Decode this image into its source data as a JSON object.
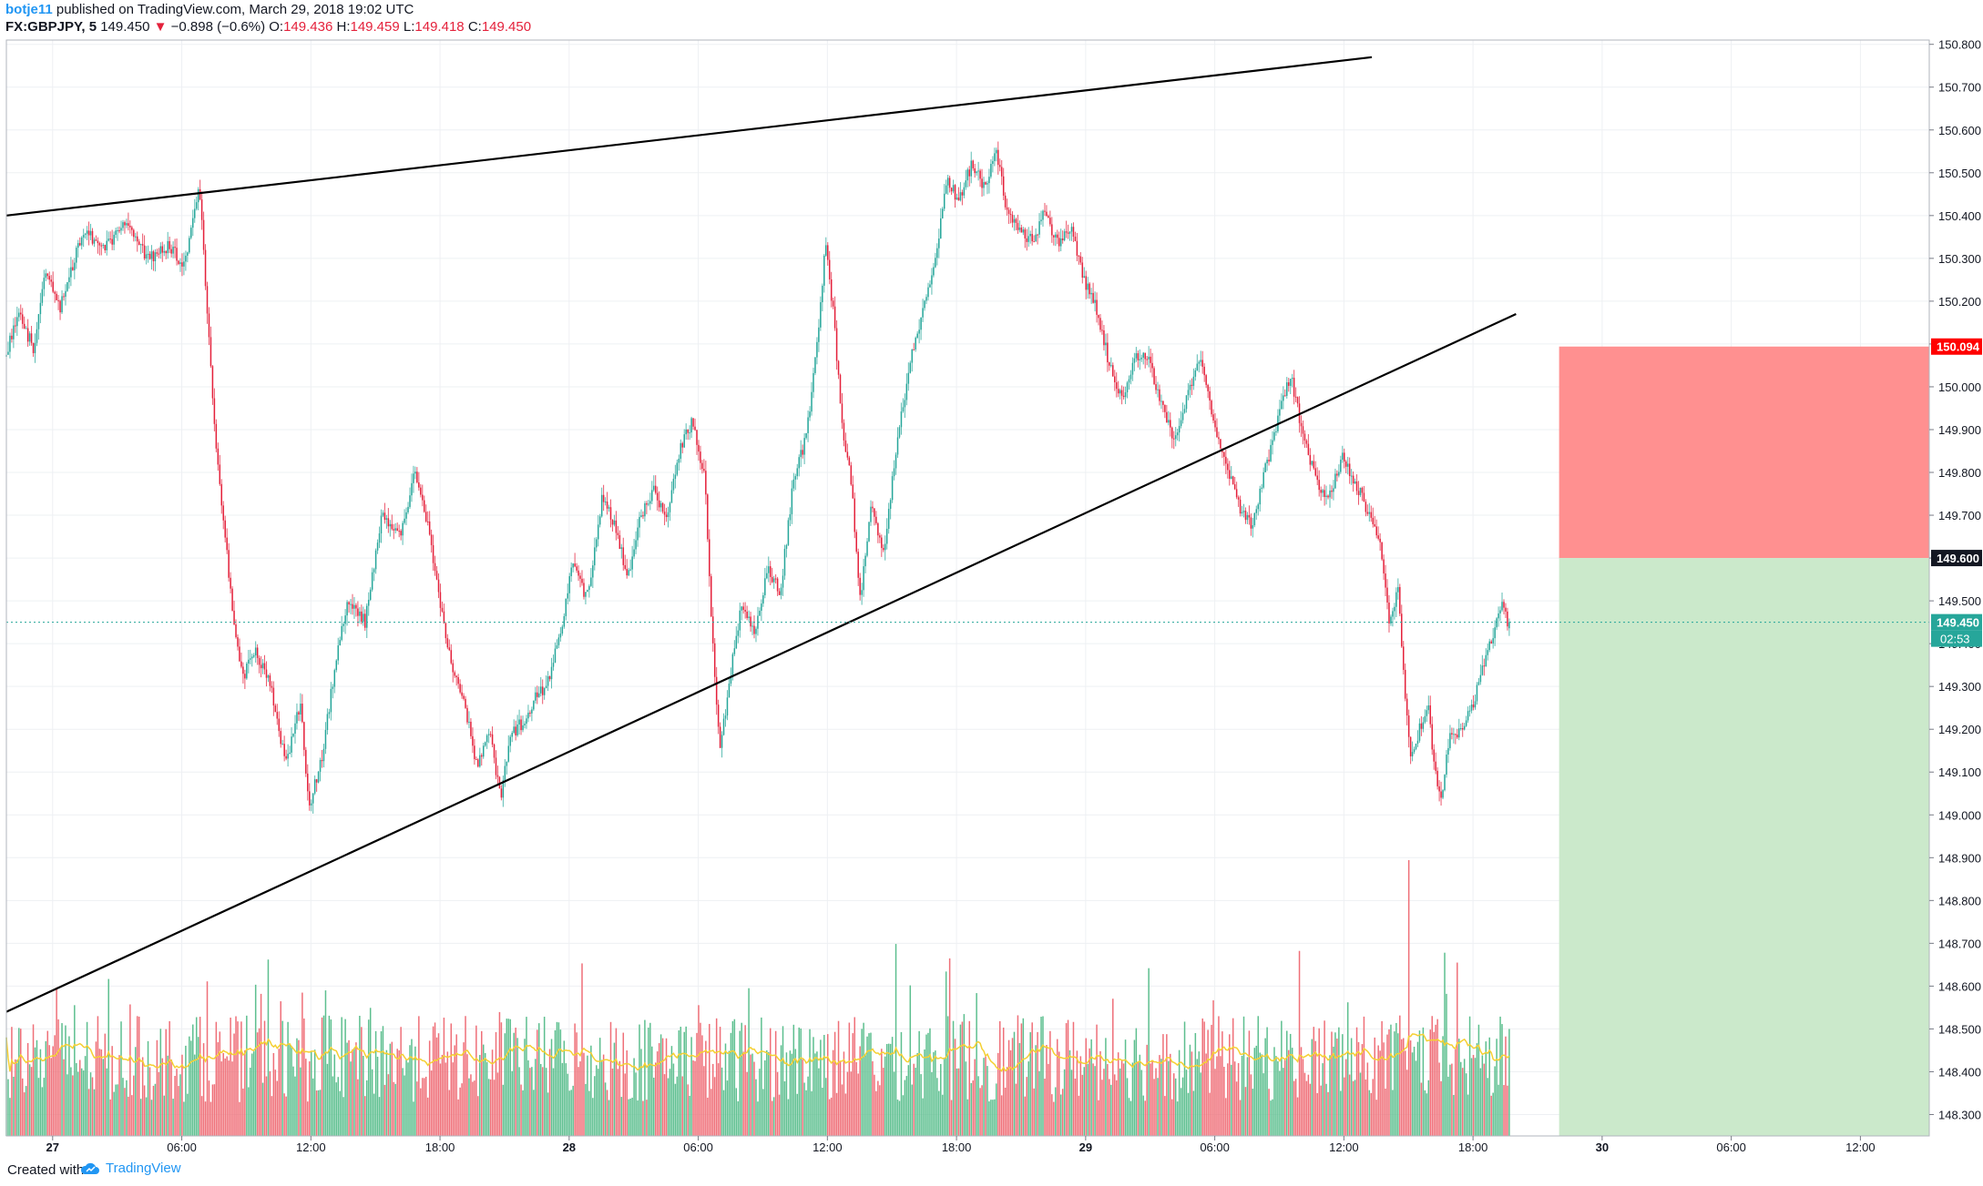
{
  "header": {
    "user": "botje11",
    "published": "published on TradingView.com, March 29, 2018 19:02 UTC",
    "symbol": "FX:GBPJPY, 5",
    "last": "149.450",
    "change": "−0.898 (−0.6%)",
    "o_label": "O:",
    "o_value": "149.436",
    "h_label": "H:",
    "h_value": "149.459",
    "l_label": "L:",
    "l_value": "149.418",
    "c_label": "C:",
    "c_value": "149.450",
    "change_direction": "down"
  },
  "footer": {
    "created_with": "Created with",
    "brand": "TradingView",
    "brand_icon": "tradingview-cloud-icon"
  },
  "colors": {
    "up": "#26a69a",
    "down": "#e4213b",
    "volume_up": "#5dbf8f",
    "volume_down": "#ef6f78",
    "volume_ma": "#f5d033",
    "stop_zone": "#ff8a8a",
    "target_zone": "#c8e8c8",
    "trendline": "#000000",
    "grid": "#eef0f3"
  },
  "chart_data": {
    "type": "candlestick",
    "symbol": "FX:GBPJPY",
    "interval": "5",
    "ylim": [
      148.25,
      150.81
    ],
    "y_ticks": [
      150.8,
      150.7,
      150.6,
      150.5,
      150.4,
      150.3,
      150.2,
      150.1,
      150.0,
      149.9,
      149.8,
      149.7,
      149.6,
      149.5,
      149.4,
      149.3,
      149.2,
      149.1,
      149.0,
      148.9,
      148.8,
      148.7,
      148.6,
      148.5,
      148.4,
      148.3
    ],
    "y_tick_labels": [
      "150.800",
      "150.700",
      "150.600",
      "150.500",
      "150.400",
      "150.300",
      "150.200",
      "150.100",
      "150.000",
      "149.900",
      "149.800",
      "149.700",
      "149.600",
      "149.500",
      "149.400",
      "149.300",
      "149.200",
      "149.100",
      "149.000",
      "148.900",
      "148.800",
      "148.700",
      "148.600",
      "148.500",
      "148.400",
      "148.300"
    ],
    "x_ticks": [
      {
        "label": "27",
        "hour": 0,
        "bold": true
      },
      {
        "label": "06:00",
        "hour": 6
      },
      {
        "label": "12:00",
        "hour": 12
      },
      {
        "label": "18:00",
        "hour": 18
      },
      {
        "label": "28",
        "hour": 24,
        "bold": true
      },
      {
        "label": "06:00",
        "hour": 30
      },
      {
        "label": "12:00",
        "hour": 36
      },
      {
        "label": "18:00",
        "hour": 42
      },
      {
        "label": "29",
        "hour": 48,
        "bold": true
      },
      {
        "label": "06:00",
        "hour": 54
      },
      {
        "label": "12:00",
        "hour": 60
      },
      {
        "label": "18:00",
        "hour": 66
      },
      {
        "label": "30",
        "hour": 72,
        "bold": true
      },
      {
        "label": "06:00",
        "hour": 78
      },
      {
        "label": "12:00",
        "hour": 84
      }
    ],
    "x_range_hours": [
      -2.15,
      87.2
    ],
    "price_path": [
      {
        "h": -2.15,
        "p": 150.07
      },
      {
        "h": -1.5,
        "p": 150.17
      },
      {
        "h": -0.8,
        "p": 150.09
      },
      {
        "h": -0.2,
        "p": 150.28
      },
      {
        "h": 0.4,
        "p": 150.18
      },
      {
        "h": 1.5,
        "p": 150.37
      },
      {
        "h": 2.5,
        "p": 150.32
      },
      {
        "h": 3.5,
        "p": 150.39
      },
      {
        "h": 4.5,
        "p": 150.3
      },
      {
        "h": 5.5,
        "p": 150.33
      },
      {
        "h": 6.2,
        "p": 150.28
      },
      {
        "h": 6.9,
        "p": 150.47
      },
      {
        "h": 7.3,
        "p": 150.15
      },
      {
        "h": 7.7,
        "p": 149.85
      },
      {
        "h": 8.1,
        "p": 149.65
      },
      {
        "h": 8.5,
        "p": 149.45
      },
      {
        "h": 8.9,
        "p": 149.32
      },
      {
        "h": 9.5,
        "p": 149.38
      },
      {
        "h": 10.2,
        "p": 149.3
      },
      {
        "h": 10.9,
        "p": 149.12
      },
      {
        "h": 11.6,
        "p": 149.26
      },
      {
        "h": 12.0,
        "p": 149.02
      },
      {
        "h": 12.6,
        "p": 149.13
      },
      {
        "h": 13.2,
        "p": 149.35
      },
      {
        "h": 13.8,
        "p": 149.5
      },
      {
        "h": 14.6,
        "p": 149.45
      },
      {
        "h": 15.4,
        "p": 149.7
      },
      {
        "h": 16.3,
        "p": 149.66
      },
      {
        "h": 16.9,
        "p": 149.8
      },
      {
        "h": 17.5,
        "p": 149.68
      },
      {
        "h": 18.1,
        "p": 149.49
      },
      {
        "h": 18.7,
        "p": 149.33
      },
      {
        "h": 19.3,
        "p": 149.24
      },
      {
        "h": 19.8,
        "p": 149.11
      },
      {
        "h": 20.4,
        "p": 149.19
      },
      {
        "h": 20.9,
        "p": 149.04
      },
      {
        "h": 21.4,
        "p": 149.19
      },
      {
        "h": 22.0,
        "p": 149.22
      },
      {
        "h": 22.5,
        "p": 149.27
      },
      {
        "h": 23.1,
        "p": 149.31
      },
      {
        "h": 23.7,
        "p": 149.43
      },
      {
        "h": 24.3,
        "p": 149.6
      },
      {
        "h": 24.9,
        "p": 149.5
      },
      {
        "h": 25.6,
        "p": 149.74
      },
      {
        "h": 26.2,
        "p": 149.68
      },
      {
        "h": 26.8,
        "p": 149.55
      },
      {
        "h": 27.4,
        "p": 149.7
      },
      {
        "h": 28.0,
        "p": 149.76
      },
      {
        "h": 28.6,
        "p": 149.7
      },
      {
        "h": 29.2,
        "p": 149.85
      },
      {
        "h": 29.8,
        "p": 149.92
      },
      {
        "h": 30.4,
        "p": 149.78
      },
      {
        "h": 30.8,
        "p": 149.35
      },
      {
        "h": 31.1,
        "p": 149.15
      },
      {
        "h": 31.5,
        "p": 149.3
      },
      {
        "h": 32.1,
        "p": 149.5
      },
      {
        "h": 32.7,
        "p": 149.42
      },
      {
        "h": 33.3,
        "p": 149.58
      },
      {
        "h": 33.9,
        "p": 149.52
      },
      {
        "h": 34.5,
        "p": 149.78
      },
      {
        "h": 35.1,
        "p": 149.88
      },
      {
        "h": 35.6,
        "p": 150.1
      },
      {
        "h": 36.0,
        "p": 150.34
      },
      {
        "h": 36.4,
        "p": 150.15
      },
      {
        "h": 36.8,
        "p": 149.88
      },
      {
        "h": 37.2,
        "p": 149.78
      },
      {
        "h": 37.6,
        "p": 149.5
      },
      {
        "h": 38.1,
        "p": 149.72
      },
      {
        "h": 38.7,
        "p": 149.62
      },
      {
        "h": 39.3,
        "p": 149.86
      },
      {
        "h": 39.9,
        "p": 150.05
      },
      {
        "h": 40.5,
        "p": 150.18
      },
      {
        "h": 41.1,
        "p": 150.3
      },
      {
        "h": 41.6,
        "p": 150.48
      },
      {
        "h": 42.2,
        "p": 150.44
      },
      {
        "h": 42.8,
        "p": 150.52
      },
      {
        "h": 43.4,
        "p": 150.46
      },
      {
        "h": 43.9,
        "p": 150.56
      },
      {
        "h": 44.4,
        "p": 150.42
      },
      {
        "h": 45.0,
        "p": 150.37
      },
      {
        "h": 45.6,
        "p": 150.34
      },
      {
        "h": 46.2,
        "p": 150.41
      },
      {
        "h": 46.8,
        "p": 150.33
      },
      {
        "h": 47.4,
        "p": 150.38
      },
      {
        "h": 48.0,
        "p": 150.25
      },
      {
        "h": 48.6,
        "p": 150.18
      },
      {
        "h": 49.2,
        "p": 150.05
      },
      {
        "h": 49.8,
        "p": 149.97
      },
      {
        "h": 50.4,
        "p": 150.08
      },
      {
        "h": 51.0,
        "p": 150.06
      },
      {
        "h": 51.6,
        "p": 149.96
      },
      {
        "h": 52.2,
        "p": 149.88
      },
      {
        "h": 52.8,
        "p": 149.98
      },
      {
        "h": 53.4,
        "p": 150.08
      },
      {
        "h": 54.0,
        "p": 149.92
      },
      {
        "h": 54.6,
        "p": 149.82
      },
      {
        "h": 55.2,
        "p": 149.72
      },
      {
        "h": 55.8,
        "p": 149.68
      },
      {
        "h": 56.4,
        "p": 149.8
      },
      {
        "h": 57.0,
        "p": 149.92
      },
      {
        "h": 57.6,
        "p": 150.03
      },
      {
        "h": 58.2,
        "p": 149.88
      },
      {
        "h": 58.8,
        "p": 149.78
      },
      {
        "h": 59.4,
        "p": 149.74
      },
      {
        "h": 60.0,
        "p": 149.84
      },
      {
        "h": 60.6,
        "p": 149.78
      },
      {
        "h": 61.2,
        "p": 149.71
      },
      {
        "h": 61.8,
        "p": 149.63
      },
      {
        "h": 62.2,
        "p": 149.45
      },
      {
        "h": 62.6,
        "p": 149.52
      },
      {
        "h": 62.9,
        "p": 149.3
      },
      {
        "h": 63.2,
        "p": 149.12
      },
      {
        "h": 63.6,
        "p": 149.2
      },
      {
        "h": 64.0,
        "p": 149.25
      },
      {
        "h": 64.3,
        "p": 149.1
      },
      {
        "h": 64.6,
        "p": 149.04
      },
      {
        "h": 65.0,
        "p": 149.18
      },
      {
        "h": 65.5,
        "p": 149.2
      },
      {
        "h": 66.0,
        "p": 149.24
      },
      {
        "h": 66.5,
        "p": 149.35
      },
      {
        "h": 67.0,
        "p": 149.41
      },
      {
        "h": 67.4,
        "p": 149.5
      },
      {
        "h": 67.7,
        "p": 149.45
      }
    ],
    "last_price": {
      "value": 149.45,
      "label": "149.450",
      "countdown": "02:53"
    },
    "trendlines": [
      {
        "name": "upper-resistance-line",
        "from": {
          "h": -2.15,
          "p": 150.4
        },
        "to": {
          "h": 61.3,
          "p": 150.77
        }
      },
      {
        "name": "lower-support-line",
        "from": {
          "h": -2.15,
          "p": 148.54
        },
        "to": {
          "h": 68.0,
          "p": 150.17
        }
      }
    ],
    "position": {
      "type": "short",
      "entry": {
        "value": 149.6,
        "label": "149.600"
      },
      "stop": {
        "value": 150.094,
        "label": "150.094"
      },
      "target_bottom": 148.25,
      "from_h": 70.0,
      "to_h": 87.2
    },
    "volume": {
      "spike_hour": 63.0,
      "spike_relative": 1.0,
      "typical_relative": 0.35,
      "ma_color": "#f5d033"
    }
  }
}
